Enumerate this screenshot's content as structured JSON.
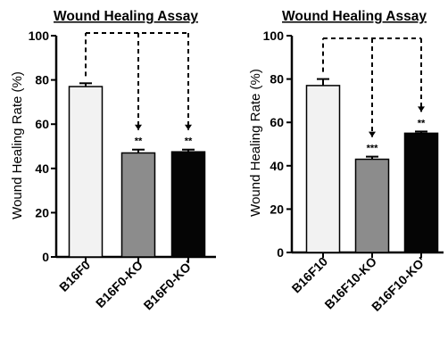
{
  "chart_data": [
    {
      "type": "bar",
      "title": "Wound Healing Assay",
      "ylabel": "Wound Healing Rate (%)",
      "ylim": [
        0,
        100
      ],
      "yticks": [
        "0",
        "20",
        "40",
        "60",
        "80",
        "100"
      ],
      "categories": [
        "B16F0",
        "B16F0-KO",
        "B16F0-KO'"
      ],
      "values": [
        77,
        47,
        47.5
      ],
      "errors": [
        1.5,
        1.5,
        1
      ],
      "significance": [
        "",
        "**",
        "**"
      ],
      "colors": [
        "#f2f2f2",
        "#8c8c8c",
        "#050505"
      ],
      "comparisons": "dashed brackets from B16F0 to B16F0-KO and B16F0-KO'"
    },
    {
      "type": "bar",
      "title": "Wound Healing Assay",
      "ylabel": "Wound Healing Rate (%)",
      "ylim": [
        0,
        100
      ],
      "yticks": [
        "0",
        "20",
        "40",
        "60",
        "80",
        "100"
      ],
      "categories": [
        "B16F10",
        "B16F10-KO",
        "B16F10-KO'"
      ],
      "values": [
        77,
        43,
        55
      ],
      "errors": [
        3,
        1.2,
        0.8
      ],
      "significance": [
        "",
        "***",
        "**"
      ],
      "colors": [
        "#f2f2f2",
        "#8c8c8c",
        "#050505"
      ],
      "comparisons": "dashed brackets from B16F10 to B16F10-KO and B16F10-KO'"
    }
  ]
}
